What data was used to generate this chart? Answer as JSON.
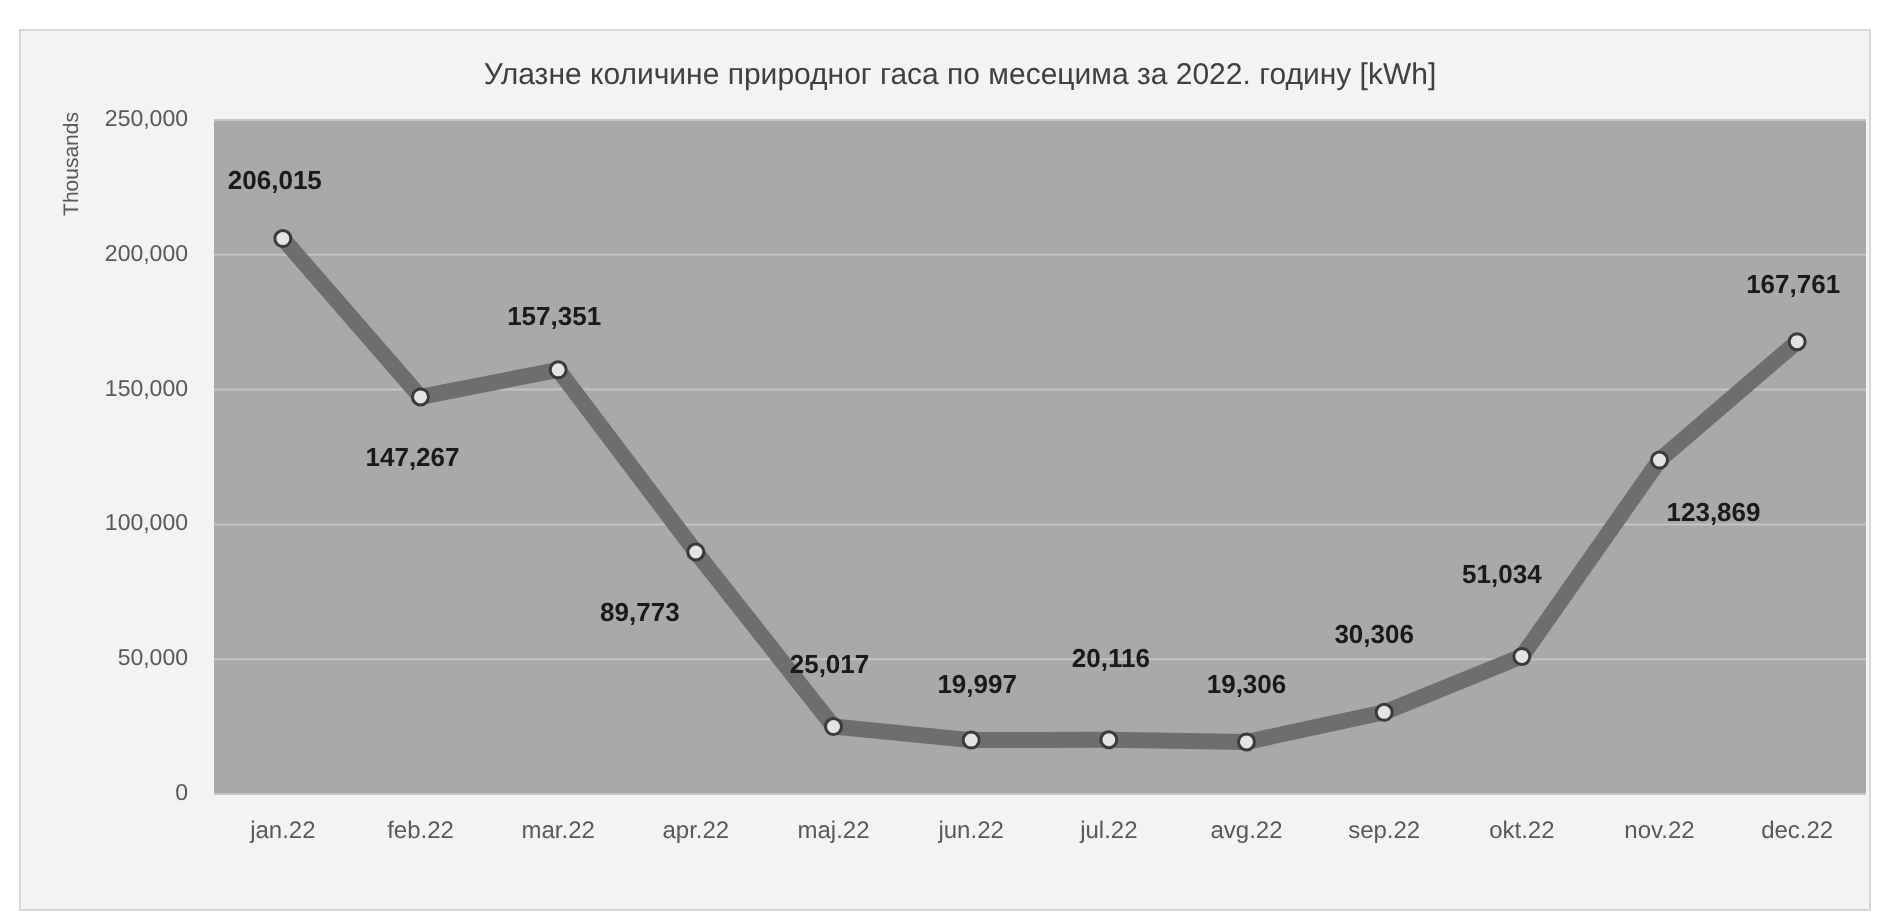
{
  "chart_data": {
    "type": "line",
    "title": "Улазне количине природног гаса по месецима за 2022. годину [kWh]",
    "ylabel": "Thousands",
    "categories": [
      "jan.22",
      "feb.22",
      "mar.22",
      "apr.22",
      "maj.22",
      "jun.22",
      "jul.22",
      "avg.22",
      "sep.22",
      "okt.22",
      "nov.22",
      "dec.22"
    ],
    "values": [
      206015,
      147267,
      157351,
      89773,
      25017,
      19997,
      20116,
      19306,
      30306,
      51034,
      123869,
      167761
    ],
    "color": "#6e6e6e",
    "value_labels": [
      "206,015",
      "147,267",
      "157,351",
      "89,773",
      "25,017",
      "19,997",
      "20,116",
      "19,306",
      "30,306",
      "51,034",
      "123,869",
      "167,761"
    ],
    "ylim": [
      0,
      250000
    ],
    "yticks": [
      0,
      {
        "value": 50000,
        "label": "50,000"
      },
      {
        "value": 100000,
        "label": "100,000"
      },
      {
        "value": 150000,
        "label": "150,000"
      },
      {
        "value": 200000,
        "label": "200,000"
      },
      {
        "value": 250000,
        "label": "250,000"
      }
    ],
    "grid": "y",
    "marker": "circle"
  }
}
